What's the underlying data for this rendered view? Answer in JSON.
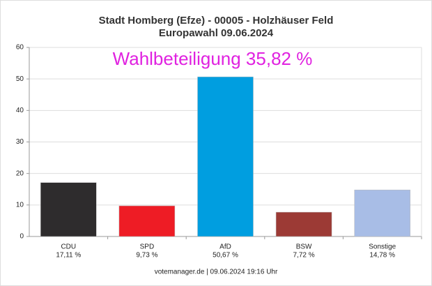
{
  "chart_data": {
    "type": "bar",
    "title": "Stadt Homberg (Efze) - 00005 - Holzhäuser Feld",
    "subtitle": "Europawahl 09.06.2024",
    "annotation": "Wahlbeteiligung 35,82 %",
    "footer": "votemanager.de | 09.06.2024 19:16 Uhr",
    "categories": [
      "CDU",
      "SPD",
      "AfD",
      "BSW",
      "Sonstige"
    ],
    "values": [
      17.11,
      9.73,
      50.67,
      7.72,
      14.78
    ],
    "value_labels": [
      "17,11 %",
      "9,73 %",
      "50,67 %",
      "7,72 %",
      "14,78 %"
    ],
    "colors": [
      "#2e2c2d",
      "#ee1c25",
      "#009ee0",
      "#9c3a35",
      "#a8bde6"
    ],
    "ylim": [
      0,
      60
    ],
    "yticks": [
      0,
      10,
      20,
      30,
      40,
      50,
      60
    ],
    "grid": true
  }
}
